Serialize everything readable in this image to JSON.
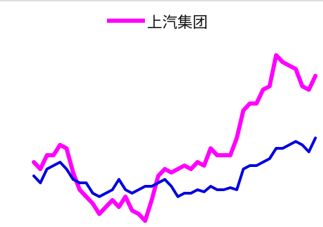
{
  "chart_data": {
    "type": "line",
    "series": [
      {
        "name": "上汽集团",
        "color": "#ff00ff",
        "values": [
          90,
          80,
          100,
          100,
          115,
          110,
          75,
          50,
          40,
          30,
          15,
          25,
          35,
          25,
          40,
          20,
          15,
          5,
          35,
          70,
          80,
          75,
          80,
          85,
          80,
          90,
          85,
          110,
          100,
          100,
          100,
          125,
          165,
          175,
          175,
          195,
          200,
          245,
          235,
          230,
          225,
          200,
          195,
          215
        ]
      },
      {
        "color": "#0000e0",
        "values": [
          70,
          60,
          80,
          85,
          90,
          80,
          65,
          60,
          60,
          45,
          40,
          45,
          50,
          65,
          50,
          45,
          50,
          55,
          55,
          60,
          65,
          55,
          40,
          45,
          45,
          50,
          47,
          55,
          50,
          50,
          53,
          50,
          80,
          85,
          85,
          90,
          95,
          110,
          110,
          115,
          120,
          115,
          105,
          125
        ]
      }
    ],
    "ylim": [
      0,
      250
    ],
    "legend": "top"
  }
}
